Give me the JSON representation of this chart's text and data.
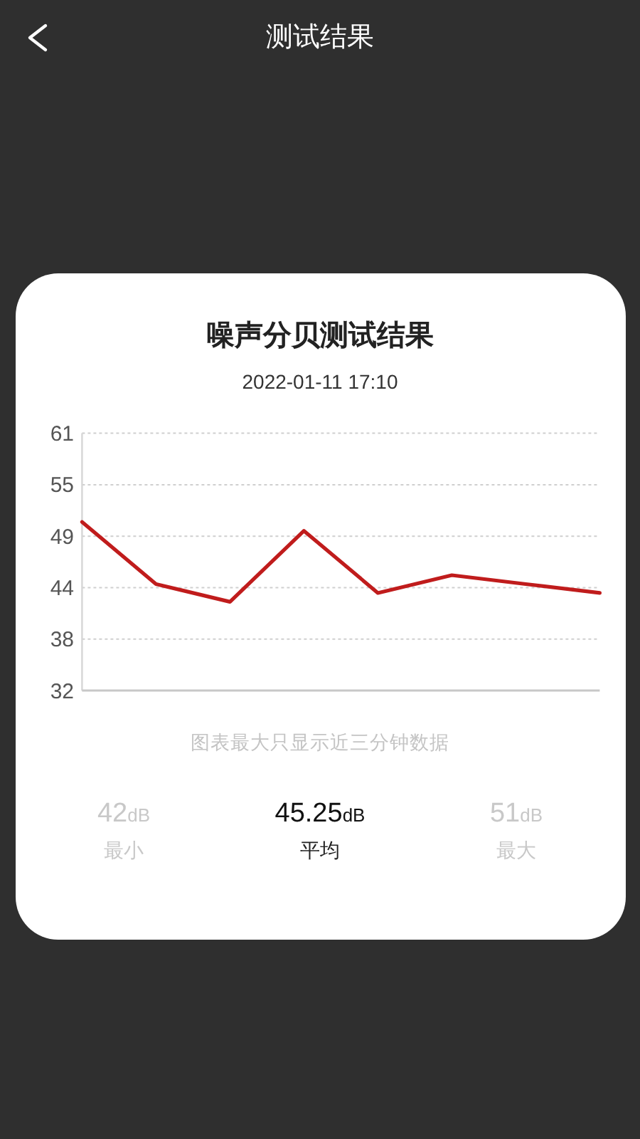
{
  "chart_data": {
    "type": "line",
    "title": "噪声分贝测试结果",
    "subtitle": "2022-01-11 17:10",
    "annotations": [
      "测试结果",
      "图表最大只显示近三分钟数据",
      "42dB",
      "45.25dB",
      "51dB",
      "最小",
      "平均",
      "最大"
    ],
    "categories": [
      null,
      null,
      null,
      null,
      null,
      null,
      null,
      null
    ],
    "values": [
      51,
      44,
      42,
      50,
      43,
      45,
      44,
      43
    ],
    "color": "#c01c1c",
    "ylim": [
      32,
      61
    ],
    "yticks": [
      32,
      {
        "value": 37.8,
        "label": "38"
      },
      {
        "value": 43.6,
        "label": "44"
      },
      {
        "value": 49.4,
        "label": "49"
      },
      {
        "value": 55.2,
        "label": "55"
      },
      61
    ],
    "grid": "y",
    "line_style": "solid"
  }
}
